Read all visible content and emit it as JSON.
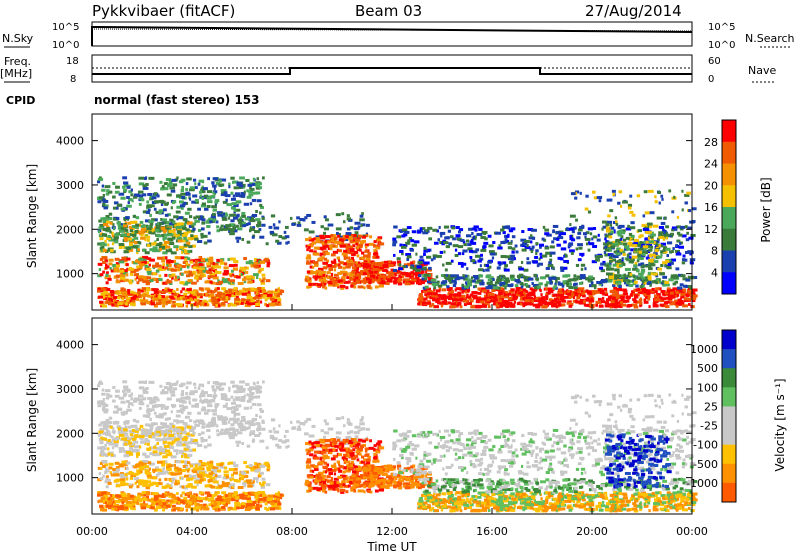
{
  "header": {
    "station": "Pykkvibaer (fitACF)",
    "beam": "Beam 03",
    "date": "27/Aug/2014"
  },
  "info_panel": {
    "left_label_1": "N.Sky",
    "left_ticks_1": [
      "10^5",
      "10^0"
    ],
    "right_label_1": "N.Search",
    "right_ticks_1": [
      "10^5",
      "10^0"
    ],
    "left_label_2a": "Freq.",
    "left_label_2b": "[MHz]",
    "left_ticks_2": [
      "18",
      "8"
    ],
    "right_label_2": "Nave",
    "right_ticks_2": [
      "60",
      "0"
    ],
    "cpid_label": "CPID",
    "cpid_value": "normal (fast stereo) 153"
  },
  "colors": {
    "power_scale": [
      "#0000ff",
      "#1a3fae",
      "#3a7a3a",
      "#4aa85a",
      "#f5c000",
      "#f59000",
      "#f05a00",
      "#ff0000"
    ],
    "velocity_scale": [
      "#ff0000",
      "#ff5a00",
      "#ff9000",
      "#ffc000",
      "#c8c8c8",
      "#c8c8c8",
      "#60c060",
      "#3a8a3a",
      "#2050c0",
      "#0000cc"
    ],
    "ground_scatter": "#c8c8c8"
  },
  "chart_data": [
    {
      "type": "heatmap",
      "name": "power",
      "ylabel": "Slant Range [km]",
      "xlabel": "",
      "yticks": [
        "1000",
        "2000",
        "3000",
        "4000"
      ],
      "ylim": [
        180,
        4600
      ],
      "colorbar": {
        "label": "Power [dB]",
        "ticks": [
          "4",
          "8",
          "12",
          "16",
          "20",
          "24",
          "28"
        ],
        "range": [
          0,
          32
        ]
      },
      "regions": [
        {
          "t": [
            0.0,
            7.0
          ],
          "r": [
            200,
            3200
          ],
          "level": "mixed"
        },
        {
          "t": [
            8.5,
            11.5
          ],
          "r": [
            500,
            1900
          ],
          "level": "strong"
        },
        {
          "t": [
            13.0,
            24.0
          ],
          "r": [
            300,
            900
          ],
          "level": "strong"
        },
        {
          "t": [
            12.0,
            24.0
          ],
          "r": [
            700,
            2200
          ],
          "level": "weak"
        }
      ]
    },
    {
      "type": "heatmap",
      "name": "velocity",
      "ylabel": "Slant Range [km]",
      "xlabel": "Time UT",
      "xticks": [
        "00:00",
        "04:00",
        "08:00",
        "12:00",
        "16:00",
        "20:00",
        "00:00"
      ],
      "yticks": [
        "1000",
        "2000",
        "3000",
        "4000"
      ],
      "ylim": [
        180,
        4600
      ],
      "colorbar": {
        "label": "Velocity [m s⁻¹]",
        "ticks": [
          "1000",
          "500",
          "100",
          "25",
          "-25",
          "-100",
          "-500",
          "-1000"
        ]
      }
    }
  ]
}
